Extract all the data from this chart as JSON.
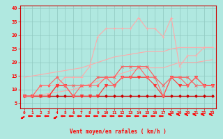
{
  "xlabel": "Vent moyen/en rafales ( km/h )",
  "background_color": "#b0e8e0",
  "grid_color": "#90c8c0",
  "x_values": [
    0,
    1,
    2,
    3,
    4,
    5,
    6,
    7,
    8,
    9,
    10,
    11,
    12,
    13,
    14,
    15,
    16,
    17,
    18,
    19,
    20,
    21,
    22,
    23
  ],
  "ylim": [
    3,
    41
  ],
  "xlim": [
    -0.5,
    23.5
  ],
  "yticks": [
    5,
    10,
    15,
    20,
    25,
    30,
    35,
    40
  ],
  "xticks": [
    0,
    1,
    2,
    3,
    4,
    5,
    6,
    7,
    8,
    9,
    10,
    11,
    12,
    13,
    14,
    15,
    16,
    17,
    18,
    19,
    20,
    21,
    22,
    23
  ],
  "series": [
    {
      "color": "#ffaaaa",
      "linewidth": 0.8,
      "marker": null,
      "y": [
        14.5,
        15.0,
        15.5,
        16.0,
        16.5,
        17.0,
        17.5,
        18.0,
        19.0,
        20.0,
        21.0,
        22.0,
        22.5,
        23.0,
        23.5,
        24.0,
        24.0,
        24.0,
        25.0,
        25.5,
        25.5,
        25.5,
        25.5,
        25.5
      ]
    },
    {
      "color": "#ffaaaa",
      "linewidth": 0.8,
      "marker": null,
      "y": [
        7.5,
        7.8,
        8.0,
        8.5,
        9.0,
        9.5,
        10.0,
        11.0,
        12.0,
        13.0,
        14.0,
        15.0,
        16.0,
        17.0,
        17.5,
        18.0,
        18.0,
        18.0,
        19.0,
        20.0,
        20.0,
        20.0,
        20.5,
        21.0
      ]
    },
    {
      "color": "#ffaaaa",
      "linewidth": 0.8,
      "marker": "+",
      "markersize": 3.5,
      "y": [
        7.5,
        7.5,
        11.5,
        11.5,
        11.5,
        14.5,
        14.5,
        14.5,
        18.5,
        29.5,
        32.5,
        32.5,
        32.5,
        32.5,
        36.5,
        32.5,
        32.5,
        29.5,
        36.5,
        18.5,
        22.5,
        22.5,
        25.5,
        25.5
      ]
    },
    {
      "color": "#ff5555",
      "linewidth": 0.8,
      "marker": "x",
      "markersize": 3,
      "y": [
        7.5,
        7.5,
        7.5,
        7.5,
        11.5,
        11.5,
        11.5,
        11.5,
        11.5,
        14.5,
        14.5,
        14.5,
        18.5,
        18.5,
        18.5,
        18.5,
        14.5,
        11.5,
        14.5,
        14.5,
        14.5,
        11.5,
        11.5,
        11.5
      ]
    },
    {
      "color": "#cc0000",
      "linewidth": 1.0,
      "marker": "D",
      "markersize": 2,
      "y": [
        7.5,
        7.5,
        7.5,
        7.5,
        7.5,
        7.5,
        7.5,
        7.5,
        7.5,
        7.5,
        7.5,
        7.5,
        7.5,
        7.5,
        7.5,
        7.5,
        7.5,
        7.5,
        7.5,
        7.5,
        7.5,
        7.5,
        7.5,
        7.5
      ]
    },
    {
      "color": "#ff3333",
      "linewidth": 0.8,
      "marker": "v",
      "markersize": 3,
      "y": [
        7.5,
        7.5,
        7.5,
        7.5,
        11.5,
        11.5,
        7.5,
        7.5,
        7.5,
        7.5,
        11.5,
        11.5,
        14.5,
        14.5,
        14.5,
        14.5,
        11.5,
        7.5,
        14.5,
        11.5,
        11.5,
        14.5,
        11.5,
        11.5
      ]
    },
    {
      "color": "#ff6666",
      "linewidth": 0.8,
      "marker": "*",
      "markersize": 3,
      "y": [
        7.5,
        7.5,
        11.5,
        11.5,
        14.5,
        11.5,
        7.5,
        11.5,
        11.5,
        11.5,
        14.5,
        11.5,
        14.5,
        14.5,
        18.5,
        14.5,
        14.5,
        7.5,
        14.5,
        14.5,
        11.5,
        14.5,
        11.5,
        11.5
      ]
    }
  ],
  "arrow_angles": [
    225,
    270,
    270,
    270,
    225,
    270,
    270,
    270,
    270,
    270,
    270,
    270,
    270,
    270,
    270,
    270,
    270,
    270,
    315,
    315,
    315,
    315,
    315,
    315
  ]
}
